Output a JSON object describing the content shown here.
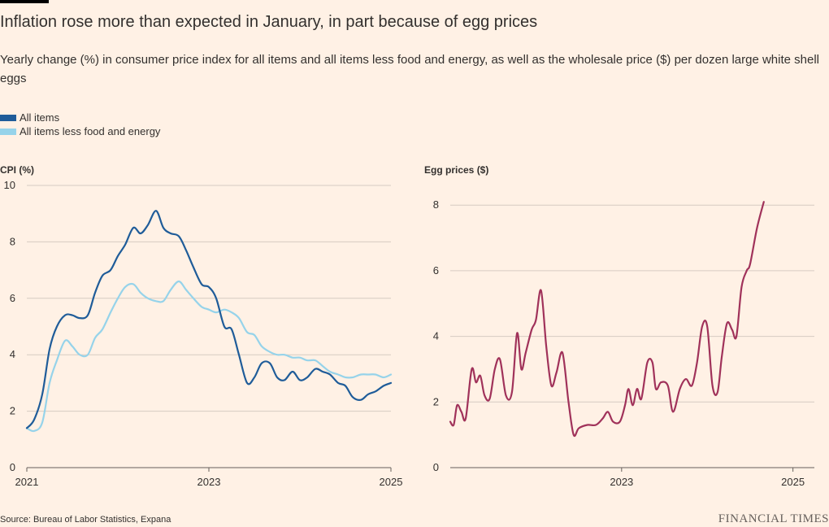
{
  "header": {
    "title": "Inflation rose more than expected in January, in part because of egg prices",
    "subtitle": "Yearly change (%) in consumer price index for all items and all items less food and energy, as well as the wholesale price ($) per dozen large white shell eggs"
  },
  "legend": [
    {
      "label": "All items",
      "color": "#1F5C99"
    },
    {
      "label": "All items less food and energy",
      "color": "#96D3EA"
    }
  ],
  "footer": {
    "source": "Source: Bureau of Labor Statistics, Expana",
    "logo": "FINANCIAL TIMES"
  },
  "chart_data": [
    {
      "type": "line",
      "title": "CPI (%)",
      "xlim": [
        2021.0,
        2025.0
      ],
      "ylim": [
        0,
        10
      ],
      "yticks": [
        0,
        2,
        4,
        6,
        8,
        10
      ],
      "xticks": [
        {
          "value": 2021,
          "label": "2021"
        },
        {
          "value": 2023,
          "label": "2023"
        },
        {
          "value": 2025,
          "label": "2025"
        }
      ],
      "grid": true,
      "series": [
        {
          "name": "All items",
          "color": "#1F5C99",
          "points": [
            [
              2021.0,
              1.4
            ],
            [
              2021.08,
              1.7
            ],
            [
              2021.17,
              2.6
            ],
            [
              2021.25,
              4.2
            ],
            [
              2021.33,
              5.0
            ],
            [
              2021.42,
              5.4
            ],
            [
              2021.5,
              5.4
            ],
            [
              2021.58,
              5.3
            ],
            [
              2021.67,
              5.4
            ],
            [
              2021.75,
              6.2
            ],
            [
              2021.83,
              6.8
            ],
            [
              2021.92,
              7.0
            ],
            [
              2022.0,
              7.5
            ],
            [
              2022.08,
              7.9
            ],
            [
              2022.17,
              8.5
            ],
            [
              2022.25,
              8.3
            ],
            [
              2022.33,
              8.6
            ],
            [
              2022.42,
              9.1
            ],
            [
              2022.5,
              8.5
            ],
            [
              2022.58,
              8.3
            ],
            [
              2022.67,
              8.2
            ],
            [
              2022.75,
              7.7
            ],
            [
              2022.83,
              7.1
            ],
            [
              2022.92,
              6.5
            ],
            [
              2023.0,
              6.4
            ],
            [
              2023.08,
              6.0
            ],
            [
              2023.17,
              5.0
            ],
            [
              2023.25,
              4.9
            ],
            [
              2023.33,
              4.0
            ],
            [
              2023.42,
              3.0
            ],
            [
              2023.5,
              3.2
            ],
            [
              2023.58,
              3.7
            ],
            [
              2023.67,
              3.7
            ],
            [
              2023.75,
              3.2
            ],
            [
              2023.83,
              3.1
            ],
            [
              2023.92,
              3.4
            ],
            [
              2024.0,
              3.1
            ],
            [
              2024.08,
              3.2
            ],
            [
              2024.17,
              3.5
            ],
            [
              2024.25,
              3.4
            ],
            [
              2024.33,
              3.3
            ],
            [
              2024.42,
              3.0
            ],
            [
              2024.5,
              2.9
            ],
            [
              2024.58,
              2.5
            ],
            [
              2024.67,
              2.4
            ],
            [
              2024.75,
              2.6
            ],
            [
              2024.83,
              2.7
            ],
            [
              2024.92,
              2.9
            ],
            [
              2025.0,
              3.0
            ]
          ]
        },
        {
          "name": "All items less food and energy",
          "color": "#96D3EA",
          "points": [
            [
              2021.0,
              1.4
            ],
            [
              2021.08,
              1.3
            ],
            [
              2021.17,
              1.6
            ],
            [
              2021.25,
              3.0
            ],
            [
              2021.33,
              3.8
            ],
            [
              2021.42,
              4.5
            ],
            [
              2021.5,
              4.3
            ],
            [
              2021.58,
              4.0
            ],
            [
              2021.67,
              4.0
            ],
            [
              2021.75,
              4.6
            ],
            [
              2021.83,
              4.9
            ],
            [
              2021.92,
              5.5
            ],
            [
              2022.0,
              6.0
            ],
            [
              2022.08,
              6.4
            ],
            [
              2022.17,
              6.5
            ],
            [
              2022.25,
              6.2
            ],
            [
              2022.33,
              6.0
            ],
            [
              2022.42,
              5.9
            ],
            [
              2022.5,
              5.9
            ],
            [
              2022.58,
              6.3
            ],
            [
              2022.67,
              6.6
            ],
            [
              2022.75,
              6.3
            ],
            [
              2022.83,
              6.0
            ],
            [
              2022.92,
              5.7
            ],
            [
              2023.0,
              5.6
            ],
            [
              2023.08,
              5.5
            ],
            [
              2023.17,
              5.6
            ],
            [
              2023.25,
              5.5
            ],
            [
              2023.33,
              5.3
            ],
            [
              2023.42,
              4.8
            ],
            [
              2023.5,
              4.7
            ],
            [
              2023.58,
              4.3
            ],
            [
              2023.67,
              4.1
            ],
            [
              2023.75,
              4.0
            ],
            [
              2023.83,
              4.0
            ],
            [
              2023.92,
              3.9
            ],
            [
              2024.0,
              3.9
            ],
            [
              2024.08,
              3.8
            ],
            [
              2024.17,
              3.8
            ],
            [
              2024.25,
              3.6
            ],
            [
              2024.33,
              3.4
            ],
            [
              2024.42,
              3.3
            ],
            [
              2024.5,
              3.2
            ],
            [
              2024.58,
              3.2
            ],
            [
              2024.67,
              3.3
            ],
            [
              2024.75,
              3.3
            ],
            [
              2024.83,
              3.3
            ],
            [
              2024.92,
              3.2
            ],
            [
              2025.0,
              3.3
            ]
          ]
        }
      ]
    },
    {
      "type": "line",
      "title": "Egg prices ($)",
      "xlim": [
        2021.0,
        2025.25
      ],
      "ylim": [
        0,
        8.6
      ],
      "yticks": [
        0,
        2,
        4,
        6,
        8
      ],
      "xticks": [
        {
          "value": 2023,
          "label": "2023"
        },
        {
          "value": 2025,
          "label": "2025"
        }
      ],
      "grid": true,
      "series": [
        {
          "name": "Egg prices",
          "color": "#A0325A",
          "points": [
            [
              2021.0,
              1.4
            ],
            [
              2021.04,
              1.3
            ],
            [
              2021.08,
              1.9
            ],
            [
              2021.13,
              1.7
            ],
            [
              2021.18,
              1.5
            ],
            [
              2021.25,
              3.0
            ],
            [
              2021.3,
              2.6
            ],
            [
              2021.35,
              2.8
            ],
            [
              2021.4,
              2.2
            ],
            [
              2021.46,
              2.1
            ],
            [
              2021.52,
              3.0
            ],
            [
              2021.58,
              3.3
            ],
            [
              2021.65,
              2.2
            ],
            [
              2021.72,
              2.3
            ],
            [
              2021.78,
              4.1
            ],
            [
              2021.83,
              3.0
            ],
            [
              2021.88,
              3.5
            ],
            [
              2021.95,
              4.2
            ],
            [
              2022.0,
              4.5
            ],
            [
              2022.06,
              5.4
            ],
            [
              2022.12,
              3.7
            ],
            [
              2022.18,
              2.5
            ],
            [
              2022.24,
              2.9
            ],
            [
              2022.31,
              3.5
            ],
            [
              2022.38,
              2.0
            ],
            [
              2022.44,
              1.0
            ],
            [
              2022.5,
              1.2
            ],
            [
              2022.6,
              1.3
            ],
            [
              2022.7,
              1.3
            ],
            [
              2022.78,
              1.5
            ],
            [
              2022.84,
              1.7
            ],
            [
              2022.9,
              1.4
            ],
            [
              2022.98,
              1.4
            ],
            [
              2023.04,
              1.9
            ],
            [
              2023.08,
              2.4
            ],
            [
              2023.13,
              1.9
            ],
            [
              2023.18,
              2.4
            ],
            [
              2023.23,
              2.1
            ],
            [
              2023.3,
              3.2
            ],
            [
              2023.36,
              3.2
            ],
            [
              2023.4,
              2.4
            ],
            [
              2023.46,
              2.6
            ],
            [
              2023.54,
              2.5
            ],
            [
              2023.6,
              1.7
            ],
            [
              2023.68,
              2.4
            ],
            [
              2023.75,
              2.7
            ],
            [
              2023.82,
              2.5
            ],
            [
              2023.88,
              3.2
            ],
            [
              2023.94,
              4.3
            ],
            [
              2024.0,
              4.3
            ],
            [
              2024.06,
              2.5
            ],
            [
              2024.12,
              2.3
            ],
            [
              2024.17,
              3.4
            ],
            [
              2024.23,
              4.4
            ],
            [
              2024.29,
              4.2
            ],
            [
              2024.34,
              4.0
            ],
            [
              2024.4,
              5.5
            ],
            [
              2024.46,
              6.0
            ],
            [
              2024.5,
              6.2
            ],
            [
              2024.58,
              7.3
            ],
            [
              2024.66,
              8.1
            ]
          ]
        }
      ]
    }
  ]
}
